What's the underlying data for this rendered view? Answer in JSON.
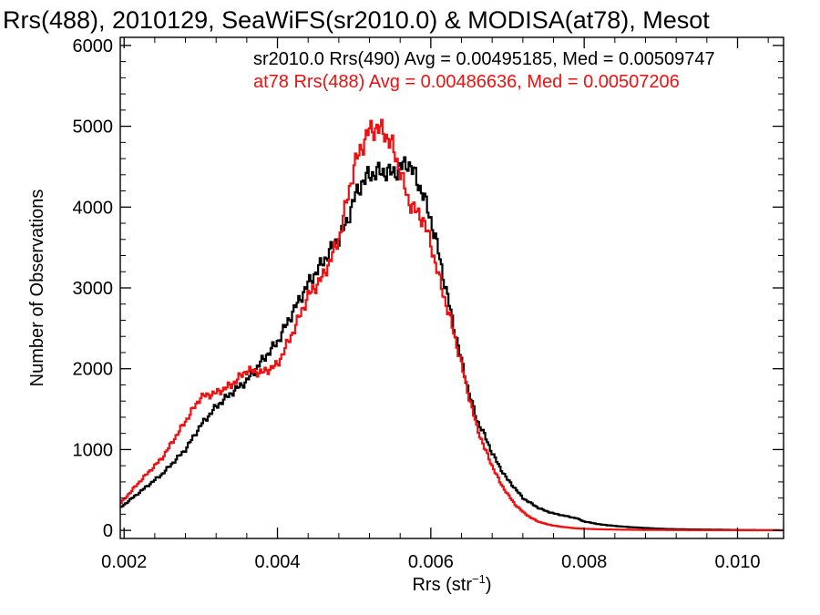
{
  "chart_data": {
    "type": "line",
    "title": "Rrs(488), 2010129, SeaWiFS(sr2010.0) & MODISA(at78), Mesot",
    "xlabel_main": "Rrs (str",
    "xlabel_sup": "−1",
    "xlabel_close": ")",
    "ylabel": "Number of Observations",
    "xlim": [
      0.00195,
      0.0106
    ],
    "ylim": [
      -100,
      6100
    ],
    "x_ticks": [
      0.002,
      0.004,
      0.006,
      0.008,
      0.01
    ],
    "x_tick_labels": [
      "0.002",
      "0.004",
      "0.006",
      "0.008",
      "0.010"
    ],
    "y_ticks": [
      0,
      1000,
      2000,
      3000,
      4000,
      5000,
      6000
    ],
    "y_tick_labels": [
      "0",
      "1000",
      "2000",
      "3000",
      "4000",
      "5000",
      "6000"
    ],
    "grid": false,
    "legend_position": "top-right",
    "series": [
      {
        "name": "sr2010.0 Rrs(490) Avg = 0.00495185, Med = 0.00509747",
        "color": "#000000",
        "x": [
          0.00195,
          0.0022,
          0.0025,
          0.0028,
          0.003,
          0.0032,
          0.0034,
          0.0036,
          0.0038,
          0.004,
          0.0042,
          0.0044,
          0.0046,
          0.0048,
          0.0049,
          0.005,
          0.0051,
          0.0052,
          0.0053,
          0.0054,
          0.0055,
          0.0056,
          0.0057,
          0.0058,
          0.0059,
          0.006,
          0.0061,
          0.0062,
          0.0063,
          0.0064,
          0.0065,
          0.0066,
          0.0067,
          0.0068,
          0.0069,
          0.007,
          0.0071,
          0.0072,
          0.0073,
          0.0074,
          0.0075,
          0.0076,
          0.0077,
          0.0078,
          0.0079,
          0.008,
          0.0082,
          0.0084,
          0.0086,
          0.0088,
          0.009,
          0.0092,
          0.0094,
          0.0096,
          0.0098,
          0.01,
          0.0102,
          0.0104,
          0.0106
        ],
        "y": [
          280,
          470,
          700,
          1000,
          1300,
          1530,
          1700,
          1850,
          2100,
          2330,
          2700,
          3050,
          3330,
          3620,
          3800,
          4100,
          4300,
          4400,
          4430,
          4440,
          4420,
          4480,
          4560,
          4380,
          4150,
          3850,
          3450,
          2970,
          2530,
          2100,
          1700,
          1370,
          1180,
          960,
          780,
          630,
          520,
          400,
          340,
          280,
          240,
          210,
          190,
          170,
          150,
          110,
          75,
          55,
          40,
          30,
          20,
          15,
          12,
          10,
          8,
          5,
          4,
          3,
          2
        ]
      },
      {
        "name": "at78 Rrs(488) Avg = 0.00486636, Med = 0.00507206",
        "color": "#ee1111",
        "x": [
          0.00195,
          0.0022,
          0.0025,
          0.0028,
          0.003,
          0.0032,
          0.0034,
          0.0036,
          0.0038,
          0.004,
          0.0042,
          0.0044,
          0.0046,
          0.0048,
          0.0049,
          0.005,
          0.0051,
          0.0052,
          0.0053,
          0.0054,
          0.0055,
          0.0056,
          0.0057,
          0.0058,
          0.0059,
          0.006,
          0.0061,
          0.0062,
          0.0063,
          0.0064,
          0.0065,
          0.0066,
          0.0067,
          0.0068,
          0.0069,
          0.007,
          0.0071,
          0.0072,
          0.0073,
          0.0074,
          0.0075,
          0.0076,
          0.0077,
          0.0078,
          0.0079,
          0.008,
          0.0082,
          0.0084,
          0.0086,
          0.0088,
          0.009,
          0.0092,
          0.0094,
          0.0096,
          0.0098,
          0.01,
          0.0102,
          0.0104,
          0.0106
        ],
        "y": [
          330,
          600,
          900,
          1350,
          1650,
          1700,
          1800,
          1980,
          1950,
          2050,
          2450,
          2900,
          3150,
          3600,
          4050,
          4500,
          4750,
          4950,
          4980,
          4920,
          4750,
          4450,
          4100,
          3950,
          3850,
          3550,
          3150,
          2800,
          2450,
          2050,
          1650,
          1280,
          1020,
          800,
          600,
          450,
          320,
          230,
          160,
          110,
          80,
          60,
          45,
          35,
          25,
          20,
          14,
          10,
          8,
          6,
          5,
          4,
          3,
          3,
          2,
          2,
          1,
          1,
          1
        ]
      }
    ]
  }
}
